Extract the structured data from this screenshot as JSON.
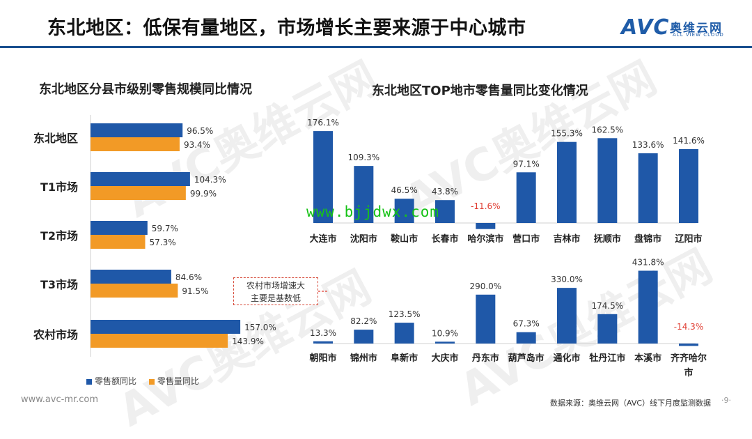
{
  "header": {
    "title": "东北地区：低保有量地区，市场增长主要来源于中心城市",
    "logo_text": "AVC",
    "logo_cn": "奥维云网",
    "logo_en": "ALL VIEW CLOUD"
  },
  "watermark_text": "AVC奥维云网",
  "overlay_url": "www.bjjdwx.com",
  "left_chart_title": "东北地区分县市级别零售规模同比情况",
  "right_chart_title": "东北地区TOP地市零售量同比变化情况",
  "callout": {
    "line1": "农村市场增速大",
    "line2": "主要是基数低"
  },
  "colors": {
    "amount": "#1f58a8",
    "volume": "#f29a26",
    "negative": "#e03c31"
  },
  "chart_data": [
    {
      "type": "bar",
      "orientation": "horizontal",
      "title": "东北地区分县市级别零售规模同比情况",
      "categories": [
        "东北地区",
        "T1市场",
        "T2市场",
        "T3市场",
        "农村市场"
      ],
      "series": [
        {
          "name": "零售额同比",
          "values": [
            96.5,
            104.3,
            59.7,
            84.6,
            157.0
          ],
          "labels": [
            "96.5%",
            "104.3%",
            "59.7%",
            "84.6%",
            "157.0%"
          ]
        },
        {
          "name": "零售量同比",
          "values": [
            93.4,
            99.9,
            57.3,
            91.5,
            143.9
          ],
          "labels": [
            "93.4%",
            "99.9%",
            "57.3%",
            "91.5%",
            "143.9%"
          ]
        }
      ],
      "legend": "bottom-left",
      "grid": false
    },
    {
      "type": "bar",
      "title": "东北地区TOP地市零售量同比变化情况",
      "categories": [
        "大连市",
        "沈阳市",
        "鞍山市",
        "长春市",
        "哈尔滨市",
        "营口市",
        "吉林市",
        "抚顺市",
        "盘锦市",
        "辽阳市"
      ],
      "values": [
        176.1,
        109.3,
        46.5,
        43.8,
        -11.6,
        97.1,
        155.3,
        162.5,
        133.6,
        141.6
      ],
      "labels": [
        "176.1%",
        "109.3%",
        "46.5%",
        "43.8%",
        "-11.6%",
        "97.1%",
        "155.3%",
        "162.5%",
        "133.6%",
        "141.6%"
      ],
      "grid": false
    },
    {
      "type": "bar",
      "categories": [
        "朝阳市",
        "锦州市",
        "阜新市",
        "大庆市",
        "丹东市",
        "葫芦岛市",
        "通化市",
        "牡丹江市",
        "本溪市",
        "齐齐哈尔市"
      ],
      "values": [
        13.3,
        82.2,
        123.5,
        10.9,
        290.0,
        67.3,
        330.0,
        174.5,
        431.8,
        -14.3
      ],
      "labels": [
        "13.3%",
        "82.2%",
        "123.5%",
        "10.9%",
        "290.0%",
        "67.3%",
        "330.0%",
        "174.5%",
        "431.8%",
        "-14.3%"
      ],
      "grid": false
    }
  ],
  "footer": {
    "website": "www.avc-mr.com",
    "source": "数据来源：奥维云网（AVC）线下月度监测数据",
    "page": "·9·"
  }
}
